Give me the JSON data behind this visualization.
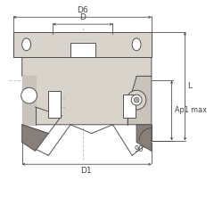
{
  "bg_color": "#ffffff",
  "body_fill": "#d8d4cc",
  "body_fill2": "#c8c4bc",
  "dark_fill": "#888078",
  "insert_fill": "#e8e4dc",
  "line_color": "#555050",
  "dim_color": "#444040",
  "labels": {
    "D6": "D6",
    "D": "D",
    "D1": "D1",
    "L": "L",
    "Ap1_max": "Ap1 max",
    "angle": "90°"
  },
  "figsize": [
    2.4,
    2.4
  ],
  "dpi": 100
}
